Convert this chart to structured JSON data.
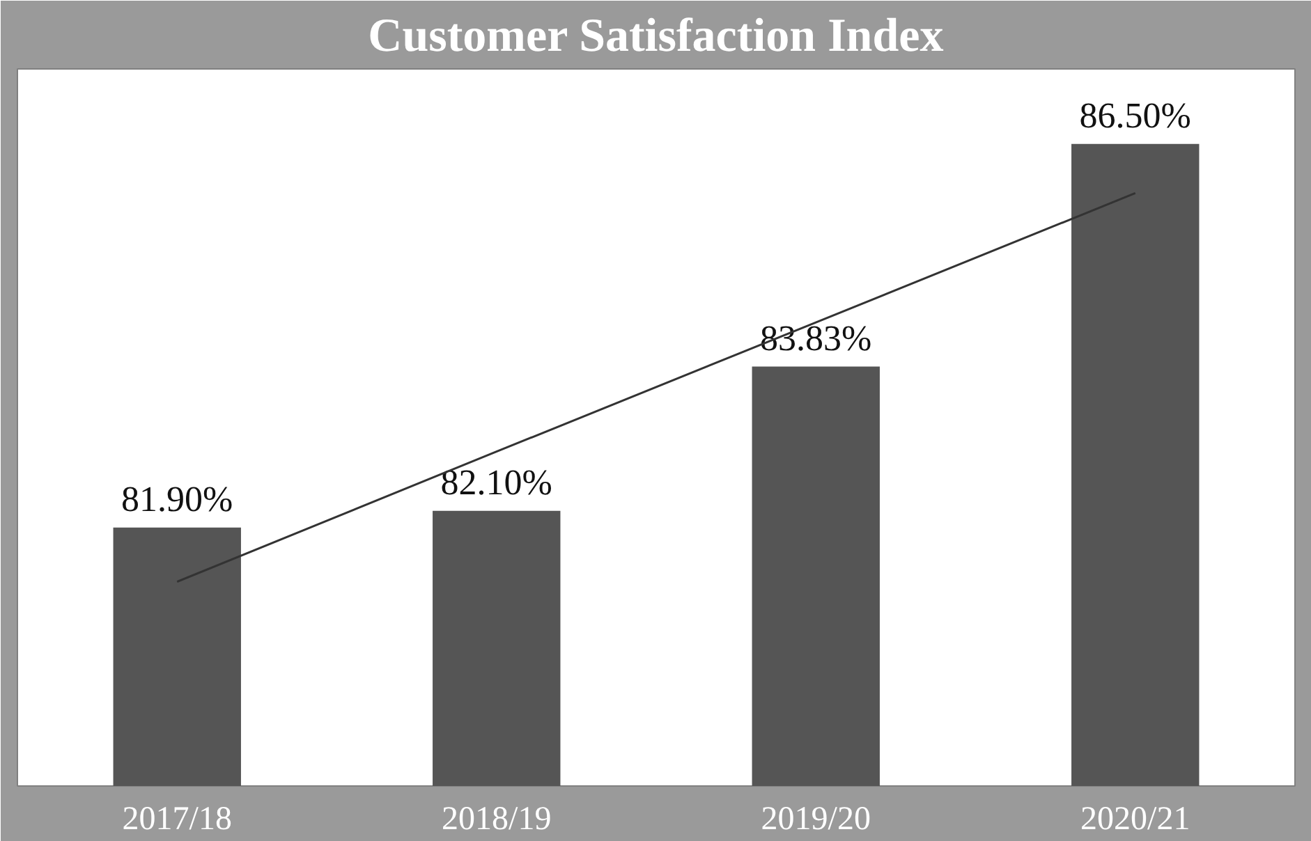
{
  "chart_data": {
    "type": "bar",
    "title": "Customer Satisfaction Index",
    "categories": [
      "2017/18",
      "2018/19",
      "2019/20",
      "2020/21"
    ],
    "series": [
      {
        "color": "#555555",
        "values": [
          81.9,
          82.1,
          83.83,
          86.5
        ],
        "value_labels": [
          "81.90%",
          "82.10%",
          "83.83%",
          "86.50%"
        ]
      },
      {
        "type": "line",
        "color": "#333333",
        "values": [
          81.25,
          82.81,
          84.36,
          85.91
        ]
      }
    ],
    "ylim": [
      78.8,
      87.4
    ],
    "grid": false
  }
}
